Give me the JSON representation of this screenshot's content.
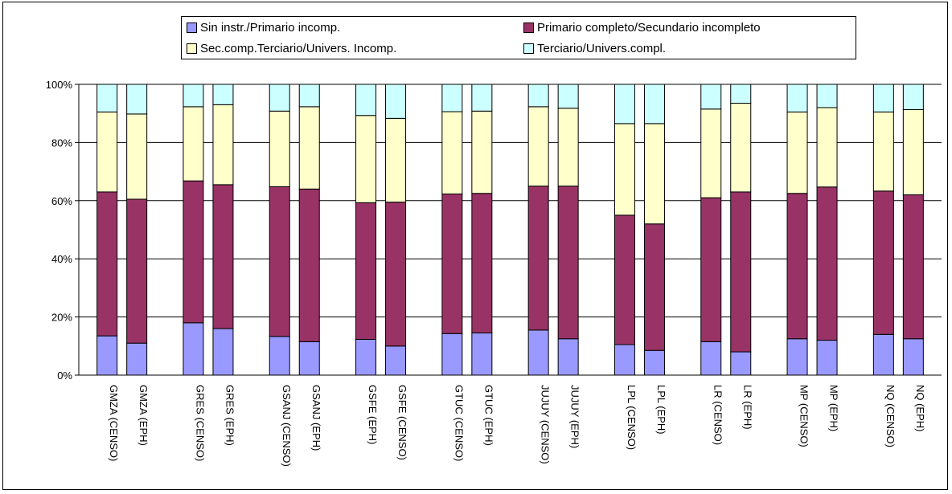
{
  "chart_data": {
    "type": "bar",
    "stacked": true,
    "percent": true,
    "title": "",
    "xlabel": "",
    "ylabel": "",
    "ylim": [
      0,
      100
    ],
    "y_ticks": [
      "0%",
      "20%",
      "40%",
      "60%",
      "80%",
      "100%"
    ],
    "grid": true,
    "legend_position": "top",
    "categories": [
      "GMZA (CENSO)",
      "GMZA (EPH)",
      "GRES (CENSO)",
      "GRES (EPH)",
      "GSANJ (CENSO)",
      "GSANJ (EPH)",
      "GSFE (EPH)",
      "GSFE (CENSO)",
      "GTUC (CENSO)",
      "GTUC (EPH)",
      "JUJUY (CENSO)",
      "JUJUY (EPH)",
      "LPL (CENSO)",
      "LPL (EPH)",
      "LR (CENSO)",
      "LR (EPH)",
      "MP (CENSO)",
      "MP (EPH)",
      "NQ (CENSO)",
      "NQ (EPH)"
    ],
    "series": [
      {
        "name": "Sin instr./Primario incomp.",
        "color": "#9999ff",
        "values": [
          13.5,
          11,
          18,
          16,
          13.3,
          11.5,
          12.3,
          10,
          14.3,
          14.5,
          15.5,
          12.5,
          10.5,
          8.5,
          11.5,
          8,
          12.5,
          12,
          14,
          12.5
        ]
      },
      {
        "name": "Primario completo/Secundario incompleto",
        "color": "#993366",
        "values": [
          49.5,
          49.5,
          48.8,
          49.5,
          51.5,
          52.5,
          47,
          49.5,
          48,
          48,
          49.5,
          52.5,
          44.5,
          43.5,
          49.5,
          55,
          50,
          52.7,
          49.3,
          49.5
        ]
      },
      {
        "name": "Sec.comp.Terciario/Univers. Incomp.",
        "color": "#ffffcc",
        "values": [
          27.5,
          29.3,
          25.5,
          27.5,
          26,
          28.3,
          30,
          28.8,
          28.3,
          28.3,
          27.3,
          26.8,
          31.5,
          34.5,
          30.5,
          30.5,
          28,
          27.3,
          27.2,
          29.3
        ]
      },
      {
        "name": "Terciario/Univers.compl.",
        "color": "#ccffff",
        "values": [
          9.5,
          10.2,
          7.7,
          7,
          9.2,
          7.7,
          10.7,
          11.7,
          9.4,
          9.2,
          7.7,
          8.2,
          13.5,
          13.5,
          8.5,
          6.5,
          9.5,
          8,
          9.5,
          8.7
        ]
      }
    ]
  }
}
